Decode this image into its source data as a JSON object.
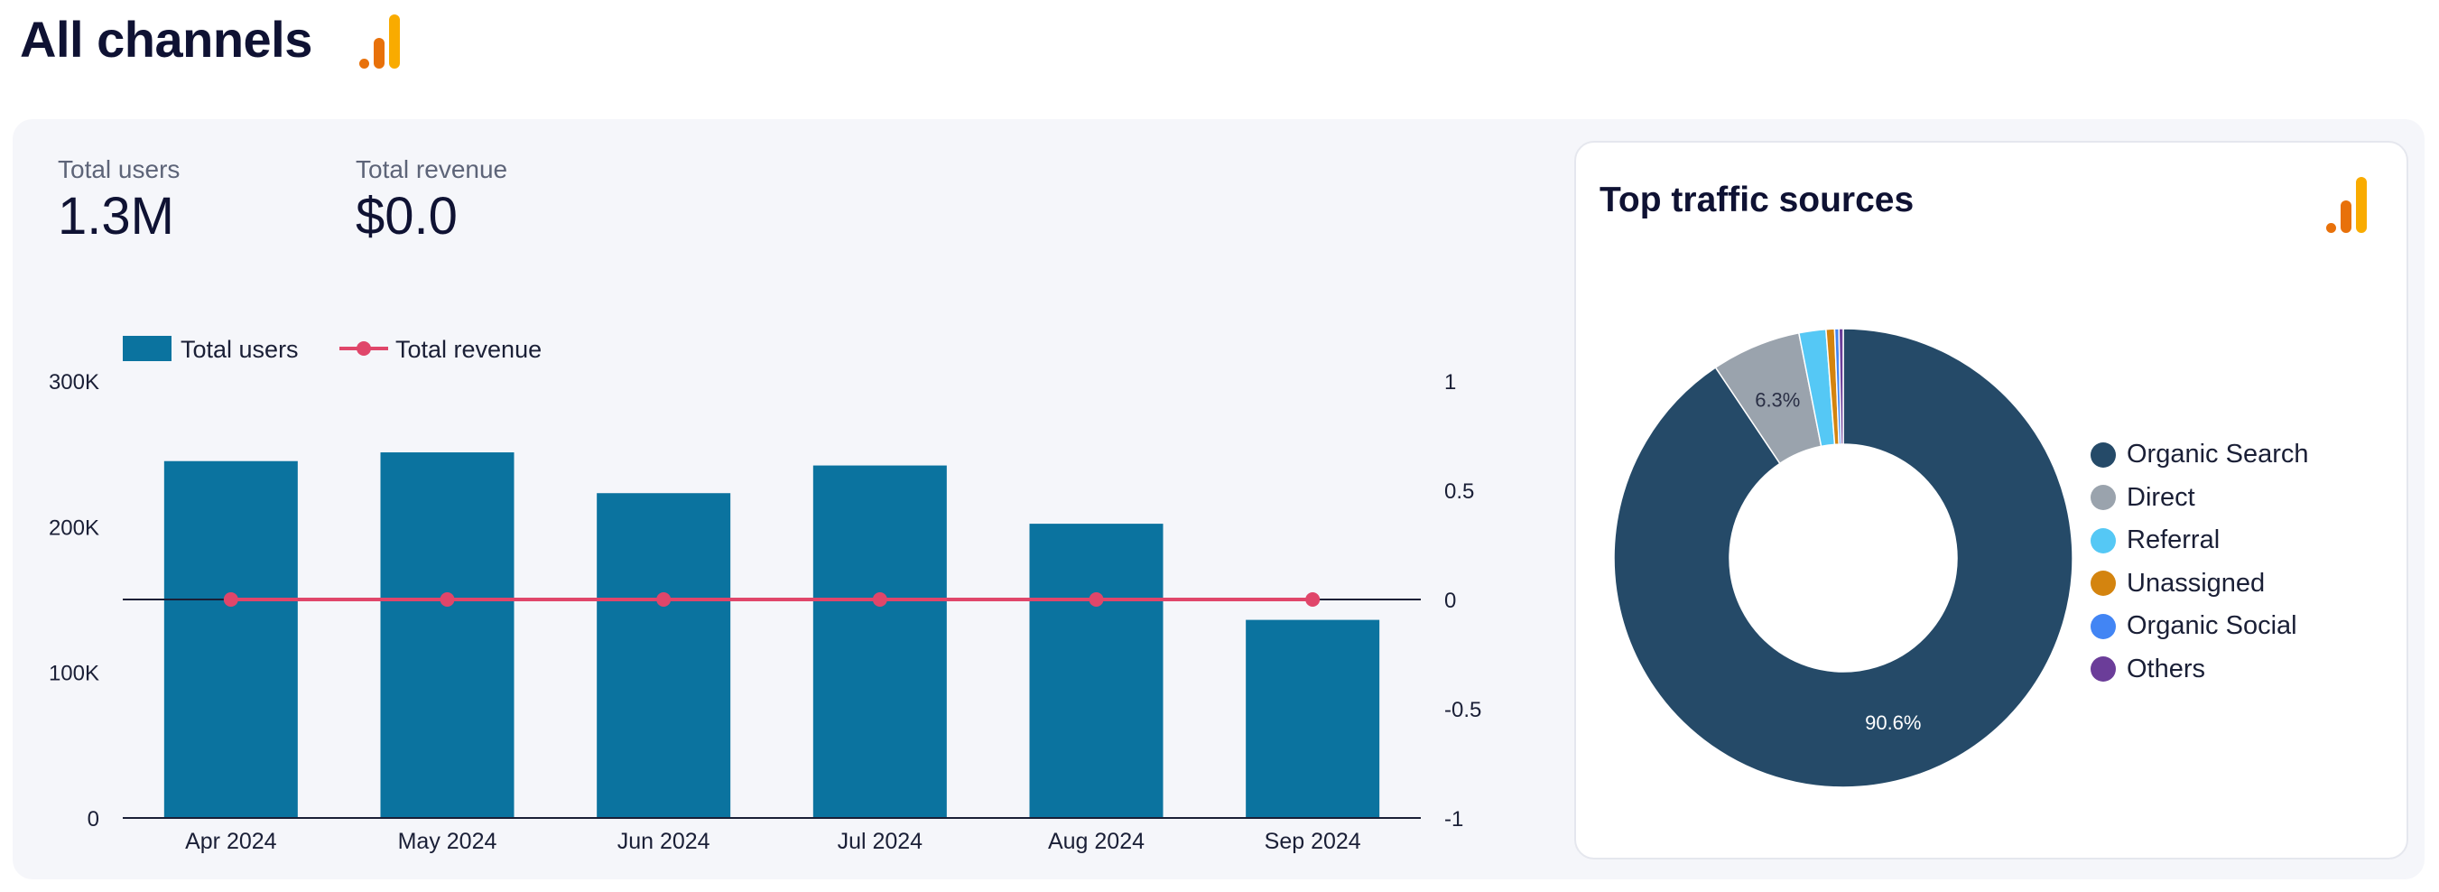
{
  "page": {
    "title": "All channels",
    "logo_icon": "analytics-bars-icon"
  },
  "kpis": [
    {
      "label": "Total users",
      "value": "1.3M"
    },
    {
      "label": "Total revenue",
      "value": "$0.0"
    }
  ],
  "chart_data": [
    {
      "type": "bar",
      "categories": [
        "Apr 2024",
        "May 2024",
        "Jun 2024",
        "Jul 2024",
        "Aug 2024",
        "Sep 2024"
      ],
      "series": [
        {
          "name": "Total users",
          "type": "bar",
          "axis": "left",
          "color": "#0b739f",
          "values": [
            245000,
            251000,
            223000,
            242000,
            202000,
            136000
          ]
        },
        {
          "name": "Total revenue",
          "type": "line",
          "axis": "right",
          "color": "#e0466a",
          "values": [
            0,
            0,
            0,
            0,
            0,
            0
          ]
        }
      ],
      "y_left": {
        "ticks": [
          "300K",
          "200K",
          "100K",
          "0"
        ],
        "range": [
          0,
          300000
        ]
      },
      "y_right": {
        "ticks": [
          "1",
          "0.5",
          "0",
          "-0.5",
          "-1"
        ],
        "range": [
          -1,
          1
        ]
      },
      "legend_position": "top-left",
      "grid": false
    },
    {
      "type": "pie",
      "title": "Top traffic sources",
      "donut": true,
      "labels": [
        "Organic Search",
        "Direct",
        "Referral",
        "Unassigned",
        "Organic Social",
        "Others"
      ],
      "values": [
        90.6,
        6.3,
        1.9,
        0.6,
        0.3,
        0.3
      ],
      "colors": [
        "#254a68",
        "#9aa3ad",
        "#55c8f5",
        "#d4840f",
        "#4285f4",
        "#6b3d99"
      ],
      "data_labels": [
        "90.6%",
        "6.3%",
        "",
        "",
        "",
        ""
      ],
      "legend_position": "right"
    }
  ],
  "card": {
    "logo_icon": "analytics-bars-icon"
  }
}
